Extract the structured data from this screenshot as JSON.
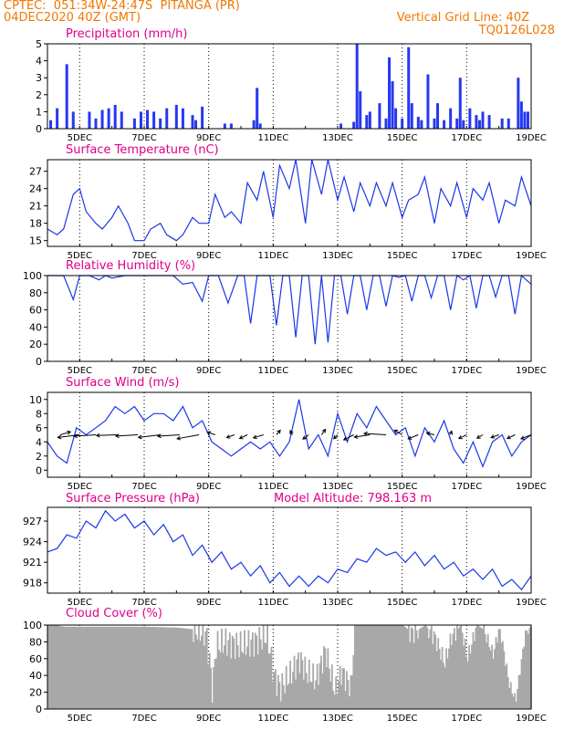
{
  "header": {
    "line1": "CPTEC:  051:34W-24:47S  PITANGA (PR)",
    "line2": "04DEC2020 40Z (GMT)",
    "right1": "Vertical Grid Line: 40Z",
    "right2": "TQ0126L028",
    "color": "#f07800"
  },
  "colors": {
    "title": "#e0008a",
    "series": "#1a37e8",
    "bar": "#2638f0",
    "cloud": "#a8a8a8"
  },
  "chart_data": [
    {
      "type": "bar",
      "title": "Precipitation (mm/h)",
      "ylim": [
        0,
        5
      ],
      "yticks": [
        0,
        1,
        2,
        3,
        4,
        5
      ],
      "xticklabels": [
        "5DEC",
        "7DEC",
        "9DEC",
        "11DEC",
        "13DEC",
        "15DEC",
        "17DEC",
        "19DEC"
      ],
      "xlim_days": [
        4.0,
        19.0
      ],
      "x": [
        4.1,
        4.3,
        4.6,
        4.8,
        5.3,
        5.5,
        5.7,
        5.9,
        6.1,
        6.3,
        6.7,
        6.9,
        7.1,
        7.3,
        7.5,
        7.7,
        8.0,
        8.2,
        8.5,
        8.6,
        8.8,
        9.5,
        9.7,
        10.4,
        10.5,
        10.6,
        13.1,
        13.5,
        13.6,
        13.7,
        13.9,
        14.0,
        14.3,
        14.5,
        14.6,
        14.7,
        14.8,
        15.0,
        15.2,
        15.3,
        15.5,
        15.6,
        15.8,
        16.0,
        16.1,
        16.3,
        16.5,
        16.7,
        16.8,
        16.9,
        17.1,
        17.3,
        17.4,
        17.5,
        17.7,
        18.1,
        18.3,
        18.6,
        18.7,
        18.8,
        18.9
      ],
      "values": [
        0.5,
        1.2,
        3.8,
        1.0,
        1.0,
        0.6,
        1.1,
        1.2,
        1.4,
        1.0,
        0.6,
        1.0,
        1.1,
        1.0,
        0.6,
        1.2,
        1.4,
        1.2,
        0.8,
        0.5,
        1.3,
        0.3,
        0.3,
        0.5,
        2.4,
        0.3,
        0.3,
        0.4,
        5.0,
        2.2,
        0.8,
        1.0,
        1.5,
        0.6,
        4.2,
        2.8,
        1.2,
        0.6,
        4.8,
        1.5,
        0.7,
        0.5,
        3.2,
        0.6,
        1.5,
        0.5,
        1.2,
        0.6,
        3.0,
        0.5,
        1.2,
        0.8,
        0.5,
        1.0,
        0.8,
        0.6,
        0.6,
        3.0,
        1.6,
        1.0,
        1.0
      ]
    },
    {
      "type": "line",
      "title": "Surface Temperature (nC)",
      "ylim": [
        14,
        29
      ],
      "yticks": [
        15,
        18,
        21,
        24,
        27
      ],
      "xticklabels": [
        "5DEC",
        "7DEC",
        "9DEC",
        "11DEC",
        "13DEC",
        "15DEC",
        "17DEC",
        "19DEC"
      ],
      "xlim_days": [
        4.0,
        19.0
      ],
      "x": [
        4.0,
        4.3,
        4.5,
        4.8,
        5.0,
        5.2,
        5.5,
        5.7,
        6.0,
        6.2,
        6.5,
        6.7,
        7.0,
        7.2,
        7.5,
        7.7,
        8.0,
        8.2,
        8.5,
        8.7,
        9.0,
        9.2,
        9.5,
        9.7,
        10.0,
        10.2,
        10.5,
        10.7,
        11.0,
        11.2,
        11.5,
        11.7,
        12.0,
        12.2,
        12.5,
        12.7,
        13.0,
        13.2,
        13.5,
        13.7,
        14.0,
        14.2,
        14.5,
        14.7,
        15.0,
        15.2,
        15.5,
        15.7,
        16.0,
        16.2,
        16.5,
        16.7,
        17.0,
        17.2,
        17.5,
        17.7,
        18.0,
        18.2,
        18.5,
        18.7,
        19.0
      ],
      "values": [
        17,
        16,
        17,
        23,
        24,
        20,
        18,
        17,
        19,
        21,
        18,
        15,
        15,
        17,
        18,
        16,
        15,
        16,
        19,
        18,
        18,
        23,
        19,
        20,
        18,
        25,
        22,
        27,
        19,
        28,
        24,
        29,
        18,
        29,
        23,
        29,
        22,
        26,
        20,
        25,
        21,
        25,
        21,
        25,
        19,
        22,
        23,
        26,
        18,
        24,
        21,
        25,
        19,
        24,
        22,
        25,
        18,
        22,
        21,
        26,
        21
      ]
    },
    {
      "type": "line",
      "title": "Relative Humidity (%)",
      "ylim": [
        0,
        100
      ],
      "yticks": [
        0,
        20,
        40,
        60,
        80,
        100
      ],
      "xticklabels": [
        "5DEC",
        "7DEC",
        "9DEC",
        "11DEC",
        "13DEC",
        "15DEC",
        "17DEC",
        "19DEC"
      ],
      "xlim_days": [
        4.0,
        19.0
      ],
      "x": [
        4.0,
        4.2,
        4.5,
        4.8,
        5.0,
        5.3,
        5.6,
        5.8,
        6.0,
        6.4,
        6.7,
        7.0,
        7.3,
        7.6,
        7.9,
        8.2,
        8.5,
        8.8,
        9.0,
        9.3,
        9.6,
        9.9,
        10.1,
        10.3,
        10.5,
        10.7,
        10.9,
        11.1,
        11.3,
        11.5,
        11.7,
        11.9,
        12.1,
        12.3,
        12.5,
        12.7,
        12.9,
        13.1,
        13.3,
        13.5,
        13.7,
        13.9,
        14.1,
        14.3,
        14.5,
        14.7,
        14.9,
        15.1,
        15.3,
        15.5,
        15.7,
        15.9,
        16.1,
        16.3,
        16.5,
        16.7,
        16.9,
        17.1,
        17.3,
        17.5,
        17.7,
        17.9,
        18.1,
        18.3,
        18.5,
        18.7,
        19.0
      ],
      "values": [
        100,
        100,
        100,
        72,
        100,
        100,
        95,
        100,
        97,
        100,
        100,
        100,
        100,
        100,
        100,
        90,
        92,
        70,
        100,
        100,
        68,
        100,
        100,
        44,
        100,
        100,
        100,
        42,
        100,
        100,
        28,
        100,
        100,
        20,
        100,
        22,
        100,
        100,
        55,
        100,
        100,
        60,
        100,
        100,
        64,
        100,
        98,
        100,
        70,
        100,
        100,
        74,
        100,
        100,
        60,
        100,
        95,
        100,
        62,
        100,
        100,
        75,
        100,
        100,
        55,
        100,
        90
      ]
    },
    {
      "type": "line",
      "title": "Surface Wind (m/s)",
      "ylim": [
        -1,
        11
      ],
      "yticks": [
        0,
        2,
        4,
        6,
        8,
        10
      ],
      "xticklabels": [
        "5DEC",
        "7DEC",
        "9DEC",
        "11DEC",
        "13DEC",
        "15DEC",
        "17DEC",
        "19DEC"
      ],
      "xlim_days": [
        4.0,
        19.0
      ],
      "x": [
        4.0,
        4.3,
        4.6,
        4.9,
        5.2,
        5.5,
        5.8,
        6.1,
        6.4,
        6.7,
        7.0,
        7.3,
        7.6,
        7.9,
        8.2,
        8.5,
        8.8,
        9.1,
        9.4,
        9.7,
        10.0,
        10.3,
        10.6,
        10.9,
        11.2,
        11.5,
        11.8,
        12.1,
        12.4,
        12.7,
        13.0,
        13.3,
        13.6,
        13.9,
        14.2,
        14.5,
        14.8,
        15.1,
        15.4,
        15.7,
        16.0,
        16.3,
        16.6,
        16.9,
        17.2,
        17.5,
        17.8,
        18.1,
        18.4,
        18.7,
        19.0
      ],
      "values": [
        4,
        2,
        1,
        6,
        5,
        6,
        7,
        9,
        8,
        9,
        7,
        8,
        8,
        7,
        9,
        6,
        7,
        4,
        3,
        2,
        3,
        4,
        3,
        4,
        2,
        4,
        10,
        3,
        5,
        2,
        8,
        4,
        8,
        6,
        9,
        7,
        5,
        6,
        2,
        6,
        4,
        7,
        3,
        1,
        4,
        0.5,
        4,
        5,
        2,
        4,
        5
      ],
      "arrows_x": [
        4.4,
        5.0,
        5.5,
        6.2,
        6.8,
        7.5,
        8.1,
        8.7,
        9.2,
        9.8,
        10.2,
        10.7,
        11.1,
        11.6,
        12.1,
        12.5,
        13.0,
        13.5,
        14.0,
        14.5,
        15.0,
        15.5,
        16.0,
        16.5,
        17.0,
        17.5,
        18.0,
        18.5,
        19.0
      ],
      "arrows_dir": [
        [
          0.6,
          -0.3
        ],
        [
          -1,
          0.2
        ],
        [
          -1,
          0.1
        ],
        [
          -1,
          0.05
        ],
        [
          -1,
          0.1
        ],
        [
          -1,
          0.2
        ],
        [
          -1,
          0.1
        ],
        [
          -1,
          0.3
        ],
        [
          -0.5,
          -0.3
        ],
        [
          -0.5,
          0.3
        ],
        [
          -0.5,
          0.4
        ],
        [
          -0.6,
          0.3
        ],
        [
          0.3,
          -0.6
        ],
        [
          -0.2,
          -0.6
        ],
        [
          -0.4,
          0.5
        ],
        [
          0.3,
          -0.7
        ],
        [
          -0.3,
          0.5
        ],
        [
          -0.6,
          0.5
        ],
        [
          -0.8,
          0.2
        ],
        [
          -1,
          -0.1
        ],
        [
          -0.5,
          -0.5
        ],
        [
          -0.6,
          0.4
        ],
        [
          -0.5,
          -0.2
        ],
        [
          0.1,
          -0.6
        ],
        [
          -0.5,
          0.4
        ],
        [
          -0.4,
          0.4
        ],
        [
          -0.5,
          0.3
        ],
        [
          -0.5,
          0.4
        ],
        [
          -0.6,
          0.4
        ]
      ]
    },
    {
      "type": "line",
      "title": "Surface Pressure (hPa)",
      "annotation": "Model Altitude: 798.163 m",
      "ylim": [
        916.5,
        929
      ],
      "yticks": [
        918,
        921,
        924,
        927
      ],
      "xticklabels": [
        "5DEC",
        "7DEC",
        "9DEC",
        "11DEC",
        "13DEC",
        "15DEC",
        "17DEC",
        "19DEC"
      ],
      "xlim_days": [
        4.0,
        19.0
      ],
      "x": [
        4.0,
        4.3,
        4.6,
        4.9,
        5.2,
        5.5,
        5.8,
        6.1,
        6.4,
        6.7,
        7.0,
        7.3,
        7.6,
        7.9,
        8.2,
        8.5,
        8.8,
        9.1,
        9.4,
        9.7,
        10.0,
        10.3,
        10.6,
        10.9,
        11.2,
        11.5,
        11.8,
        12.1,
        12.4,
        12.7,
        13.0,
        13.3,
        13.6,
        13.9,
        14.2,
        14.5,
        14.8,
        15.1,
        15.4,
        15.7,
        16.0,
        16.3,
        16.6,
        16.9,
        17.2,
        17.5,
        17.8,
        18.1,
        18.4,
        18.7,
        19.0
      ],
      "values": [
        922.5,
        923,
        925,
        924.5,
        927,
        926,
        928.5,
        927,
        928,
        926,
        927,
        925,
        926.5,
        924,
        925,
        922,
        923.5,
        921,
        922.5,
        920,
        921,
        919,
        920.5,
        918,
        919.5,
        917.5,
        919,
        917.5,
        919,
        918,
        920,
        919.5,
        921.5,
        921,
        923,
        922,
        922.5,
        921,
        922.5,
        920.5,
        922,
        920,
        921,
        919,
        920,
        918.5,
        920,
        917.5,
        918.5,
        917,
        919
      ]
    },
    {
      "type": "bar",
      "title": "Cloud Cover (%)",
      "ylim": [
        0,
        100
      ],
      "yticks": [
        0,
        20,
        40,
        60,
        80,
        100
      ],
      "xticklabels": [
        "5DEC",
        "7DEC",
        "9DEC",
        "11DEC",
        "13DEC",
        "15DEC",
        "17DEC",
        "19DEC"
      ],
      "xlim_days": [
        4.0,
        19.0
      ],
      "x_step": 0.0417,
      "profile_days": [
        4.0,
        4.2,
        4.5,
        5.0,
        6.0,
        7.0,
        8.0,
        8.5,
        8.9,
        9.0,
        9.1,
        9.2,
        9.5,
        10.0,
        10.5,
        10.8,
        11.0,
        11.2,
        11.5,
        11.8,
        12.0,
        12.3,
        12.6,
        12.9,
        13.1,
        13.4,
        13.5,
        13.7,
        14.0,
        14.5,
        15.0,
        15.3,
        15.7,
        16.0,
        16.3,
        16.5,
        16.8,
        17.0,
        17.3,
        17.5,
        17.8,
        18.0,
        18.3,
        18.5,
        18.8,
        19.0
      ],
      "profile_values": [
        100,
        100,
        98,
        98,
        98,
        98,
        97,
        95,
        90,
        60,
        20,
        75,
        80,
        75,
        82,
        88,
        40,
        25,
        40,
        60,
        45,
        35,
        70,
        20,
        45,
        25,
        100,
        100,
        100,
        100,
        100,
        90,
        100,
        85,
        55,
        85,
        100,
        60,
        100,
        95,
        65,
        98,
        30,
        10,
        90,
        100
      ]
    }
  ]
}
